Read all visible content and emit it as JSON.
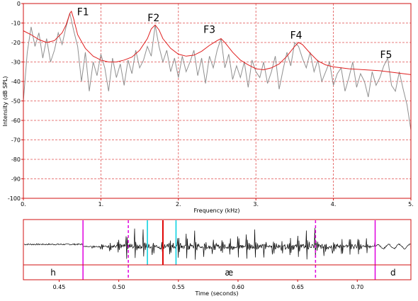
{
  "colors": {
    "frame": "#d01010",
    "grid": "#e05050",
    "spectrum": "#909090",
    "envelope": "#e02020",
    "waveform": "#000000",
    "magenta": "#e000e0",
    "cyan": "#00d0e0",
    "red_marker": "#e00000"
  },
  "chart_data": [
    {
      "type": "line",
      "title": "",
      "xlabel": "Frequency (kHz)",
      "ylabel": "Intensity (dB SPL)",
      "xlim": [
        0,
        5
      ],
      "ylim": [
        -100,
        0
      ],
      "x_ticks": [
        "0.",
        "1.",
        "2.",
        "3.",
        "4.",
        "5."
      ],
      "y_ticks": [
        "0",
        "-10",
        "-20",
        "-30",
        "-40",
        "-50",
        "-60",
        "-70",
        "-80",
        "-90",
        "-100"
      ],
      "grid": true,
      "series": [
        {
          "name": "",
          "style": "spectrum",
          "x": [
            0.0,
            0.05,
            0.1,
            0.15,
            0.2,
            0.25,
            0.3,
            0.35,
            0.4,
            0.45,
            0.5,
            0.55,
            0.6,
            0.65,
            0.7,
            0.75,
            0.8,
            0.85,
            0.9,
            0.95,
            1.0,
            1.05,
            1.1,
            1.15,
            1.2,
            1.25,
            1.3,
            1.35,
            1.4,
            1.45,
            1.5,
            1.55,
            1.6,
            1.65,
            1.7,
            1.75,
            1.8,
            1.85,
            1.9,
            1.95,
            2.0,
            2.05,
            2.1,
            2.15,
            2.2,
            2.25,
            2.3,
            2.35,
            2.4,
            2.45,
            2.5,
            2.55,
            2.6,
            2.65,
            2.7,
            2.75,
            2.8,
            2.85,
            2.9,
            2.95,
            3.0,
            3.05,
            3.1,
            3.15,
            3.2,
            3.25,
            3.3,
            3.35,
            3.4,
            3.45,
            3.5,
            3.55,
            3.6,
            3.65,
            3.7,
            3.75,
            3.8,
            3.85,
            3.9,
            3.95,
            4.0,
            4.05,
            4.1,
            4.15,
            4.2,
            4.25,
            4.3,
            4.35,
            4.4,
            4.45,
            4.5,
            4.55,
            4.6,
            4.65,
            4.7,
            4.75,
            4.8,
            4.85,
            4.9,
            4.95,
            5.0
          ],
          "y": [
            -50,
            -25,
            -12,
            -22,
            -15,
            -28,
            -18,
            -30,
            -24,
            -15,
            -21,
            -12,
            -5,
            -14,
            -22,
            -40,
            -25,
            -45,
            -30,
            -37,
            -26,
            -33,
            -45,
            -28,
            -38,
            -31,
            -42,
            -29,
            -36,
            -24,
            -33,
            -29,
            -22,
            -27,
            -11,
            -22,
            -30,
            -24,
            -35,
            -28,
            -38,
            -27,
            -35,
            -30,
            -24,
            -37,
            -28,
            -41,
            -27,
            -33,
            -24,
            -18,
            -33,
            -26,
            -39,
            -32,
            -38,
            -30,
            -43,
            -29,
            -35,
            -38,
            -30,
            -41,
            -35,
            -27,
            -44,
            -34,
            -25,
            -32,
            -20,
            -22,
            -28,
            -33,
            -25,
            -35,
            -29,
            -40,
            -35,
            -30,
            -42,
            -36,
            -33,
            -45,
            -38,
            -30,
            -43,
            -36,
            -40,
            -48,
            -35,
            -42,
            -38,
            -32,
            -28,
            -42,
            -45,
            -35,
            -44,
            -52,
            -65
          ]
        },
        {
          "name": "",
          "style": "envelope",
          "x": [
            0.0,
            0.1,
            0.2,
            0.3,
            0.4,
            0.5,
            0.55,
            0.6,
            0.62,
            0.65,
            0.7,
            0.8,
            0.9,
            1.0,
            1.1,
            1.2,
            1.3,
            1.4,
            1.5,
            1.6,
            1.65,
            1.7,
            1.75,
            1.8,
            1.9,
            2.0,
            2.1,
            2.2,
            2.3,
            2.4,
            2.5,
            2.55,
            2.6,
            2.7,
            2.8,
            2.9,
            3.0,
            3.1,
            3.2,
            3.3,
            3.4,
            3.5,
            3.55,
            3.6,
            3.7,
            3.8,
            3.9,
            4.0,
            4.2,
            4.4,
            4.6,
            4.8,
            5.0
          ],
          "y": [
            -14,
            -16,
            -18.5,
            -20,
            -19,
            -15,
            -11,
            -5,
            -4,
            -8,
            -16,
            -23,
            -27,
            -29,
            -30,
            -30,
            -29,
            -27.5,
            -24,
            -18,
            -13,
            -11,
            -13.5,
            -18,
            -23,
            -26,
            -27,
            -26.5,
            -24.5,
            -21.5,
            -19,
            -18,
            -20,
            -25,
            -29,
            -31.5,
            -33.5,
            -34,
            -33,
            -31,
            -27,
            -22,
            -20,
            -21,
            -25.5,
            -29.5,
            -31.5,
            -32.5,
            -33.5,
            -34,
            -34.5,
            -35.5,
            -36.5
          ]
        }
      ],
      "annotations": [
        {
          "text": "F1",
          "x": 0.77,
          "y": -6
        },
        {
          "text": "F2",
          "x": 1.68,
          "y": -9
        },
        {
          "text": "F3",
          "x": 2.4,
          "y": -15
        },
        {
          "text": "F4",
          "x": 3.52,
          "y": -18
        },
        {
          "text": "F5",
          "x": 4.68,
          "y": -28
        }
      ]
    },
    {
      "type": "line",
      "title": "",
      "xlabel": "Time (seconds)",
      "ylabel": "",
      "xlim": [
        0.42,
        0.745
      ],
      "x_ticks": [
        "0.45",
        "0.50",
        "0.55",
        "0.60",
        "0.65",
        "0.70"
      ],
      "x_tick_values": [
        0.45,
        0.5,
        0.55,
        0.6,
        0.65,
        0.7
      ],
      "segments": [
        {
          "label": "h",
          "start": 0.42,
          "end": 0.47
        },
        {
          "label": "æ",
          "start": 0.47,
          "end": 0.715
        },
        {
          "label": "d",
          "start": 0.715,
          "end": 0.745
        }
      ],
      "markers": [
        {
          "time": 0.47,
          "color": "magenta",
          "style": "solid",
          "span": "full"
        },
        {
          "time": 0.508,
          "color": "magenta",
          "style": "dashed",
          "span": "full"
        },
        {
          "time": 0.524,
          "color": "cyan",
          "style": "solid",
          "span": "wave"
        },
        {
          "time": 0.537,
          "color": "red_marker",
          "style": "solid",
          "span": "wave"
        },
        {
          "time": 0.548,
          "color": "cyan",
          "style": "solid",
          "span": "wave"
        },
        {
          "time": 0.665,
          "color": "magenta",
          "style": "dashed",
          "span": "full"
        },
        {
          "time": 0.715,
          "color": "magenta",
          "style": "solid",
          "span": "full"
        }
      ]
    }
  ]
}
